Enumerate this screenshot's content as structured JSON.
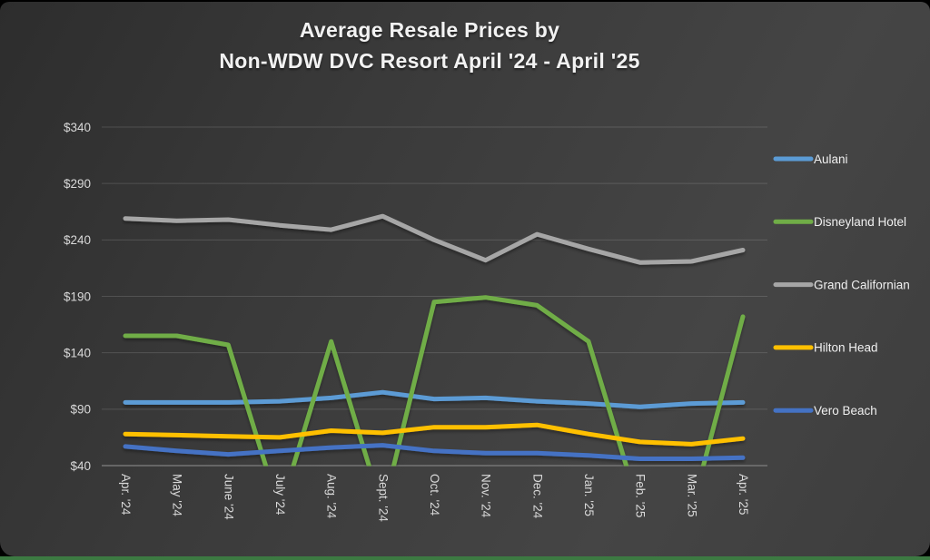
{
  "page": {
    "background": "#000000",
    "bottom_bar_color": "#3c7a42",
    "card_color": "#3b3b3b"
  },
  "chart_data": {
    "type": "line",
    "title": "Average Resale Prices by",
    "subtitle": "Non-WDW DVC Resort April '24 - April '25",
    "categories": [
      "Apr. '24",
      "May '24",
      "June '24",
      "July '24",
      "Aug. '24",
      "Sept. '24",
      "Oct. '24",
      "Nov. '24",
      "Dec. '24",
      "Jan. '25",
      "Feb. '25",
      "Mar. '25",
      "Apr. '25"
    ],
    "series": [
      {
        "name": "Aulani",
        "color": "#5B9BD5",
        "values": [
          96,
          96,
          96,
          97,
          100,
          105,
          99,
          100,
          97,
          95,
          92,
          95,
          96
        ]
      },
      {
        "name": "Disneyland Hotel",
        "color": "#70AD47",
        "values": [
          155,
          155,
          147,
          0,
          150,
          0,
          185,
          189,
          182,
          150,
          0,
          0,
          172
        ]
      },
      {
        "name": "Grand Californian",
        "color": "#A6A6A6",
        "values": [
          259,
          257,
          258,
          253,
          249,
          261,
          240,
          222,
          245,
          232,
          220,
          221,
          231
        ]
      },
      {
        "name": "Hilton Head",
        "color": "#FFC000",
        "values": [
          68,
          67,
          66,
          65,
          71,
          69,
          74,
          74,
          76,
          68,
          61,
          59,
          64
        ]
      },
      {
        "name": "Vero Beach",
        "color": "#4472C4",
        "values": [
          57,
          53,
          50,
          53,
          56,
          58,
          53,
          51,
          51,
          49,
          46,
          46,
          47
        ]
      }
    ],
    "ylim": [
      40,
      340
    ],
    "ytick_step": 50,
    "ytick_labels": [
      "$40",
      "$90",
      "$140",
      "$190",
      "$240",
      "$290",
      "$340"
    ],
    "grid": true,
    "legend_position": "right",
    "axis_text_color": "#d9d9d9",
    "gridline_color": "rgba(255,255,255,0.14)",
    "axis_line_color": "#757575"
  }
}
